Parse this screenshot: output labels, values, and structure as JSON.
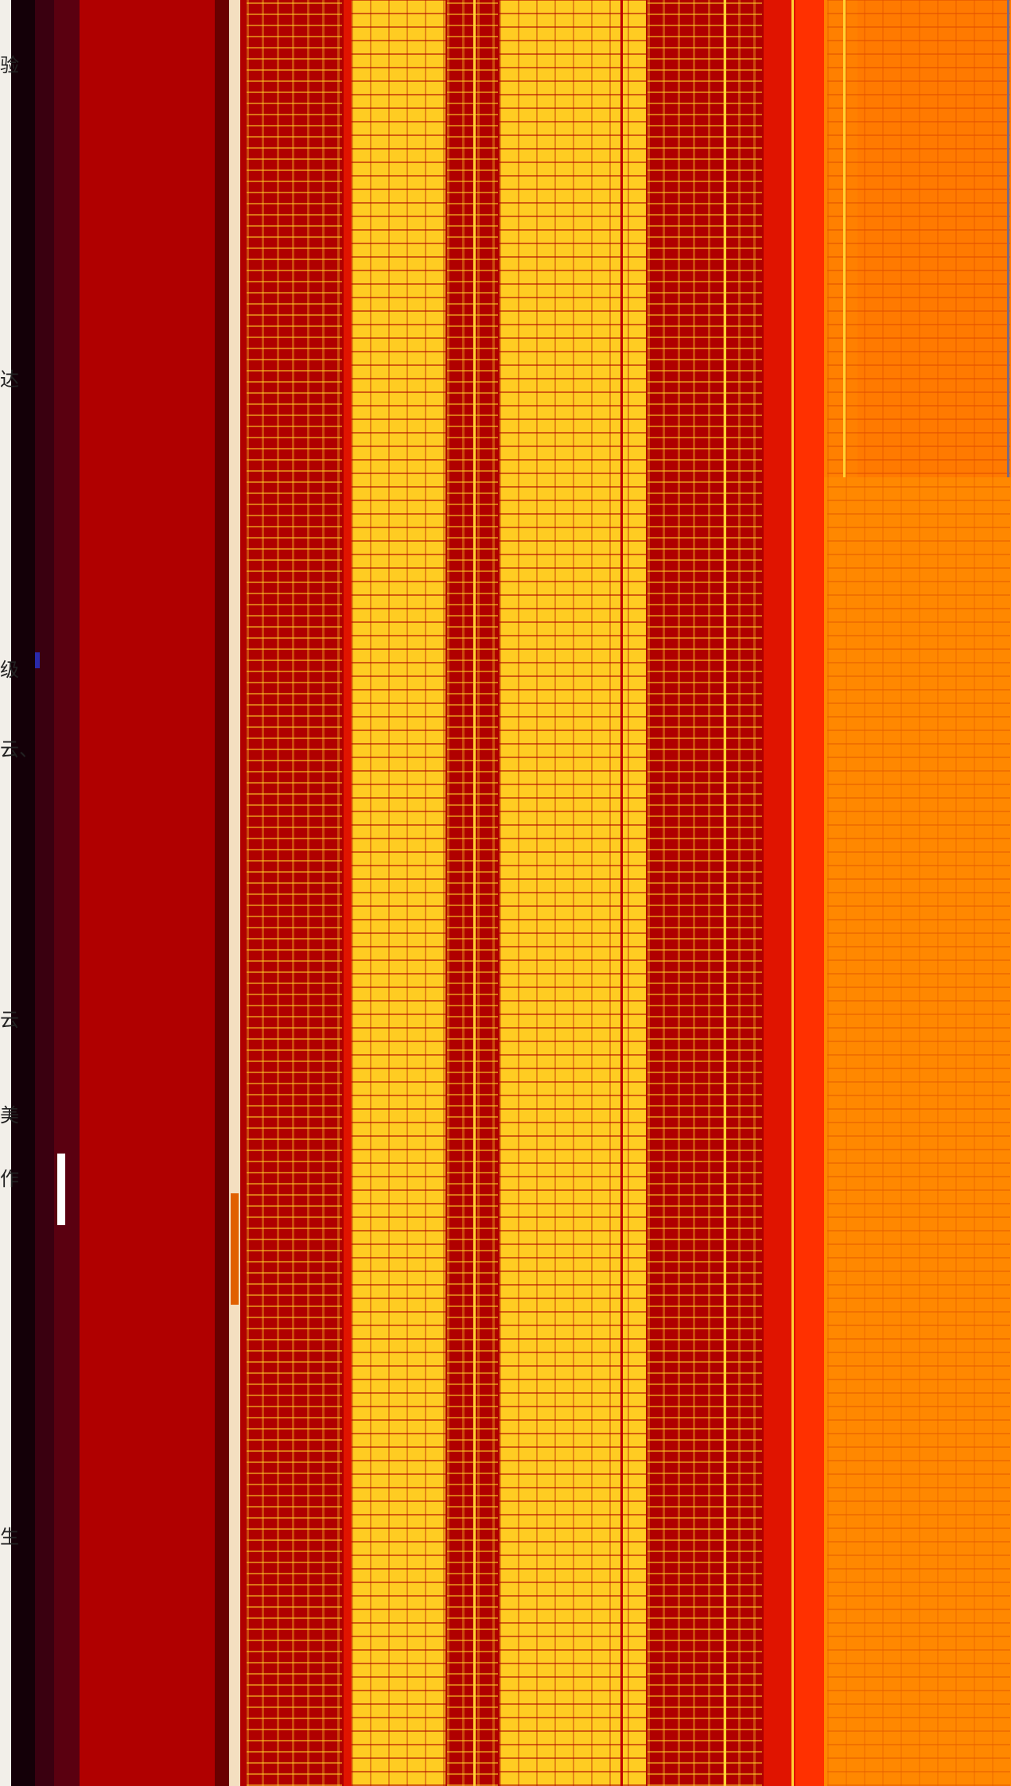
{
  "edge_glyphs": {
    "g1": "验",
    "g2": "达",
    "g3": "级",
    "g4": "云、",
    "g5": "云",
    "g6": "美",
    "g7": "作",
    "g8": "生"
  },
  "colors": {
    "deep_red": "#b00000",
    "red": "#e01400",
    "yellow": "#ffcc22",
    "orange": "#ff8000",
    "dark_left": "#140008",
    "maroon": "#5a0010"
  }
}
